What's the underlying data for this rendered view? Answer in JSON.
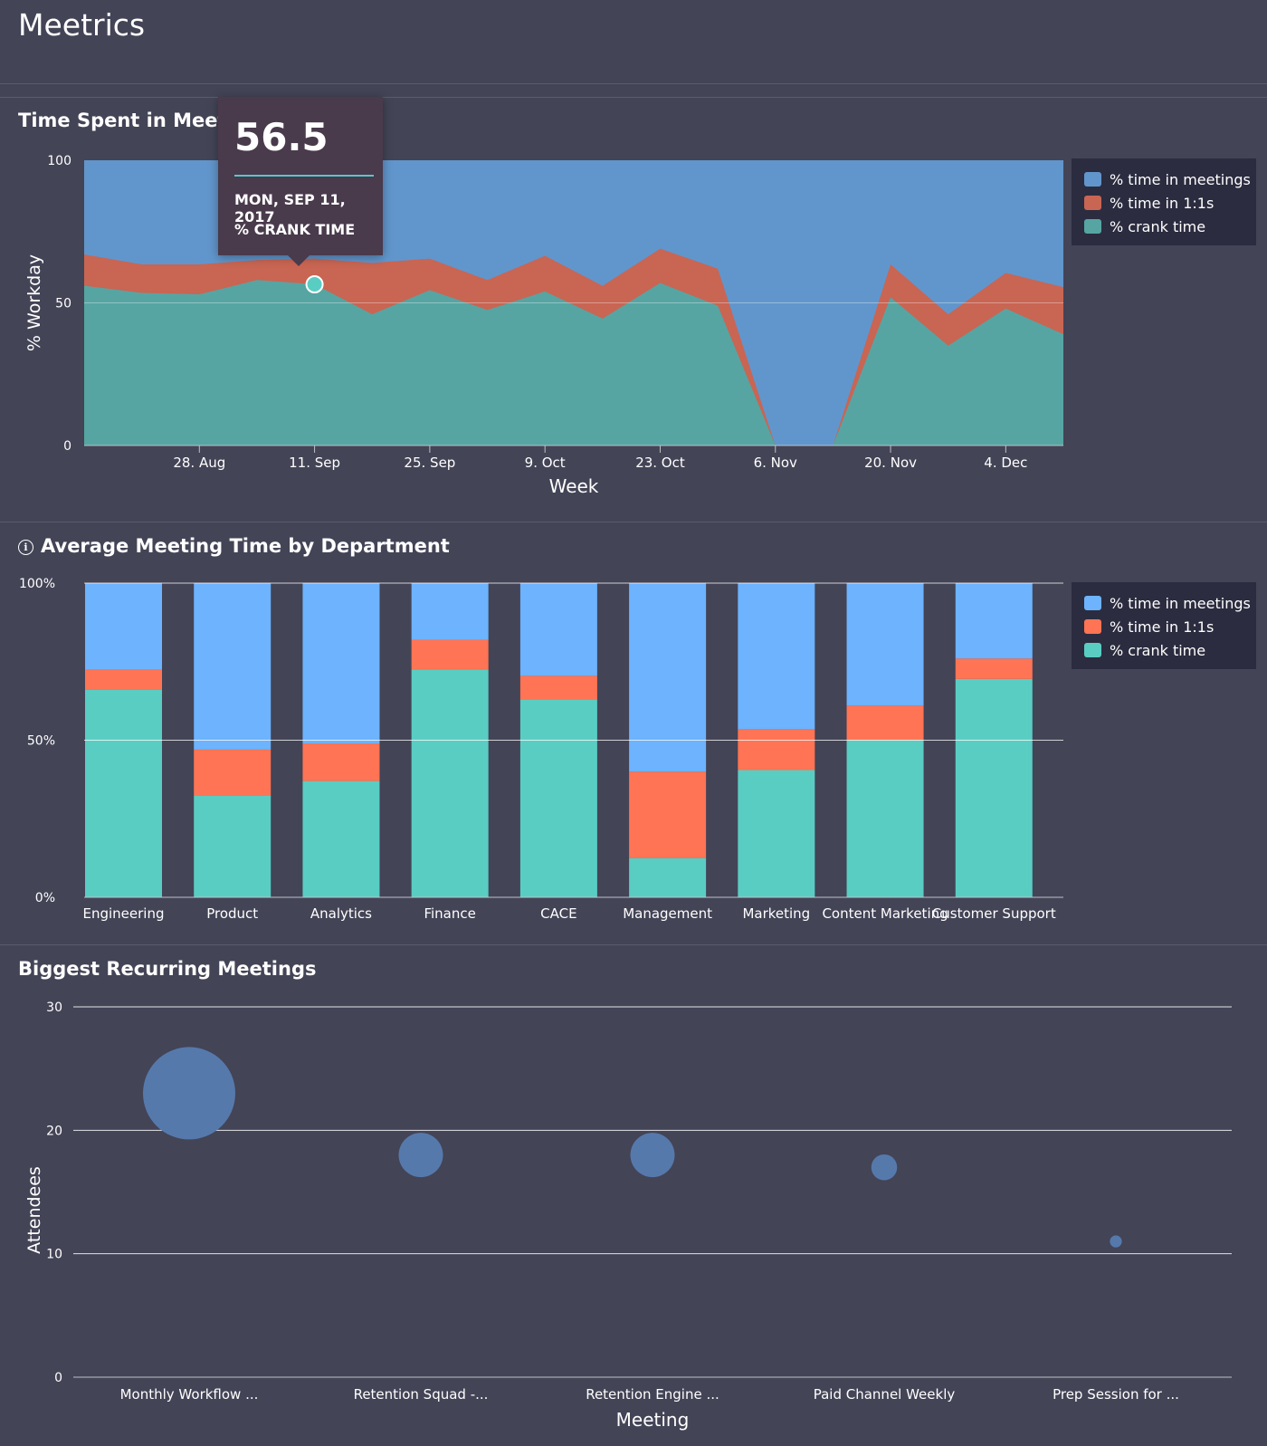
{
  "app": {
    "title": "Meetrics"
  },
  "colors": {
    "meetings": "#6196cc",
    "ones": "#c96553",
    "crank": "#56a5a3",
    "meetings_bar": "#6db3fd",
    "ones_bar": "#ff7454",
    "crank_bar": "#5acdc3",
    "bubble": "#5679ac"
  },
  "chart_data": [
    {
      "type": "area",
      "title": "Time Spent in Meetings",
      "xlabel": "Week",
      "ylabel": "% Workday",
      "ylim": [
        0,
        100
      ],
      "yticks": [
        "0",
        "50",
        "100"
      ],
      "xticks": [
        "28. Aug",
        "11. Sep",
        "25. Sep",
        "9. Oct",
        "23. Oct",
        "6. Nov",
        "20. Nov",
        "4. Dec"
      ],
      "weeks": [
        "Aug 14",
        "Aug 21",
        "Aug 28",
        "Sep 4",
        "Sep 11",
        "Sep 18",
        "Sep 25",
        "Oct 2",
        "Oct 9",
        "Oct 16",
        "Oct 23",
        "Oct 30",
        "Nov 6",
        "Nov 13",
        "Nov 20",
        "Nov 27",
        "Dec 4",
        "Dec 11"
      ],
      "series": [
        {
          "name": "% crank time",
          "values": [
            56,
            53.5,
            53,
            58,
            56.5,
            46,
            54.5,
            47.5,
            54,
            44.5,
            57,
            49,
            0,
            0,
            52,
            35,
            48,
            39
          ]
        },
        {
          "name": "% time in 1:1s",
          "values": [
            11,
            10,
            10.5,
            7,
            9,
            18,
            11,
            10.5,
            12.5,
            11.5,
            12,
            13,
            0,
            0,
            11.5,
            11,
            12.5,
            16.5
          ]
        },
        {
          "name": "% time in meetings",
          "values": [
            33,
            36.5,
            36.5,
            35,
            34.5,
            36,
            34.5,
            42,
            33.5,
            44,
            31,
            38,
            100,
            100,
            36.5,
            54,
            39.5,
            44.5
          ]
        }
      ],
      "legend_position": "right",
      "tooltip": {
        "value": "56.5",
        "date": "MON, SEP 11, 2017",
        "series": "% CRANK TIME",
        "week_index": 4
      }
    },
    {
      "type": "bar",
      "stacked": true,
      "title": "Average Meeting Time by Department",
      "categories": [
        "Engineering",
        "Product",
        "Analytics",
        "Finance",
        "CACE",
        "Management",
        "Marketing",
        "Content Marketing",
        "Customer Support"
      ],
      "yticks": [
        "0%",
        "50%",
        "100%"
      ],
      "ylim": [
        0,
        100
      ],
      "series": [
        {
          "name": "% crank time",
          "values": [
            66,
            32.5,
            37,
            72.5,
            63,
            12.5,
            40.5,
            50,
            69.5
          ]
        },
        {
          "name": "% time in 1:1s",
          "values": [
            6.5,
            14.5,
            12,
            9.5,
            7.5,
            27.5,
            13,
            11,
            6.5
          ]
        },
        {
          "name": "% time in meetings",
          "values": [
            27.5,
            53,
            51,
            18,
            29.5,
            60,
            46.5,
            39,
            24
          ]
        }
      ],
      "legend_position": "right"
    },
    {
      "type": "scatter",
      "bubble": true,
      "title": "Biggest Recurring Meetings",
      "xlabel": "Meeting",
      "ylabel": "Attendees",
      "ylim": [
        0,
        30
      ],
      "yticks": [
        "0",
        "10",
        "20",
        "30"
      ],
      "categories": [
        "Monthly Workflow ...",
        "Retention Squad -...",
        "Retention Engine ...",
        "Paid Channel Weekly",
        "Prep Session for ..."
      ],
      "values": [
        23,
        18,
        18,
        17,
        11
      ],
      "bubble_size": [
        100,
        48,
        48,
        28,
        13
      ]
    }
  ],
  "legends": {
    "time_spent": [
      "% time in meetings",
      "% time in 1:1s",
      "% crank time"
    ],
    "department": [
      "% time in meetings",
      "% time in 1:1s",
      "% crank time"
    ]
  }
}
